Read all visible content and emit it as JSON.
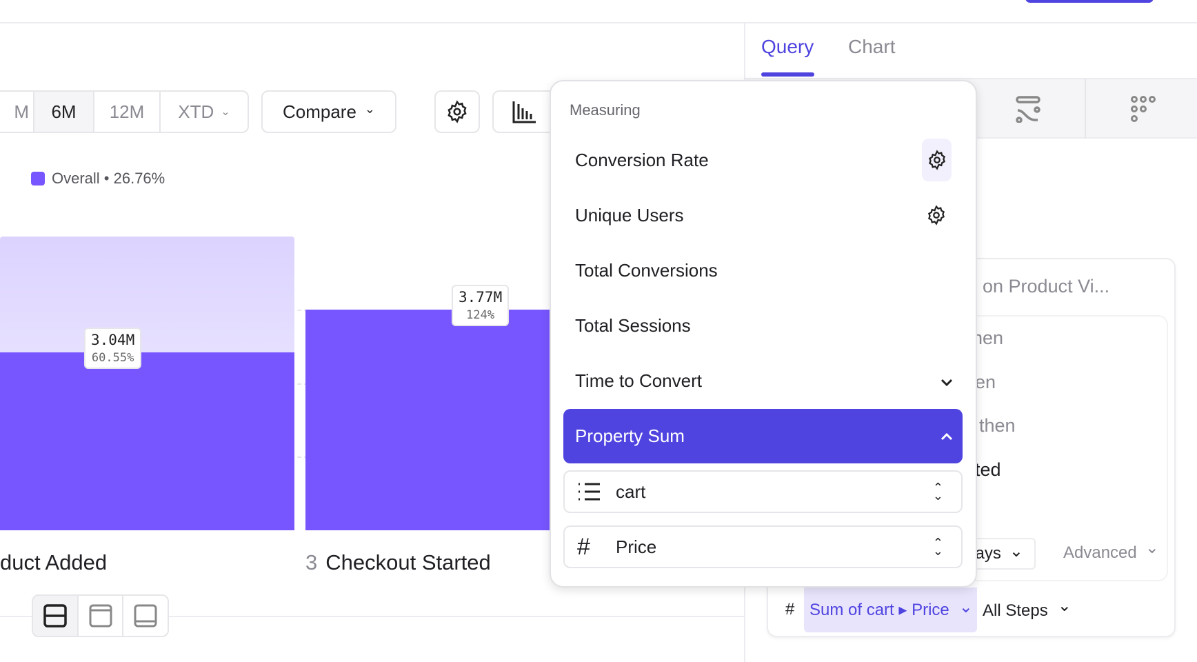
{
  "header": {
    "primary_button_color": "#4F44E0"
  },
  "toolbar": {
    "ranges": [
      {
        "label": "M",
        "active": false
      },
      {
        "label": "6M",
        "active": true
      },
      {
        "label": "12M",
        "active": false
      },
      {
        "label": "XTD",
        "active": false
      }
    ],
    "compare_label": "Compare",
    "settings_icon": "gear-icon",
    "chart_type_icon": "bar-chart-icon"
  },
  "legend": {
    "label": "Overall • 26.76%",
    "color": "#7856FF"
  },
  "chart_data": {
    "type": "bar",
    "categories": [
      "duct Added",
      "Checkout Started"
    ],
    "step_numbers": [
      "",
      "3"
    ],
    "values": [
      3.04,
      3.77
    ],
    "value_labels": [
      "3.04M",
      "3.77M"
    ],
    "pct_labels": [
      "60.55%",
      "124%"
    ],
    "previous_step_value": 5.02,
    "unit": "M",
    "ylim": [
      0,
      5.03
    ],
    "grid": true,
    "colors": {
      "bar": "#7856FF",
      "previous": "#DCD3FF"
    }
  },
  "view_toggle": {
    "icons": [
      "split-view-icon",
      "top-panel-icon",
      "bottom-panel-icon"
    ]
  },
  "right_panel": {
    "tabs": [
      {
        "label": "Query",
        "active": true
      },
      {
        "label": "Chart",
        "active": false
      }
    ],
    "icon_tabs": [
      "flows-icon",
      "grid-dots-icon"
    ],
    "card_title": "on Product Vi...",
    "steps": [
      "hen",
      "en",
      "then",
      "ted"
    ],
    "window_label": "lays",
    "advanced_label": "Advanced",
    "measure_hash": "#",
    "measure_label": "Sum of cart ▸ Price",
    "steps_label": "All Steps"
  },
  "dropdown": {
    "heading": "Measuring",
    "items": [
      {
        "label": "Conversion Rate",
        "icon": "gear-icon"
      },
      {
        "label": "Unique Users",
        "icon": "gear-icon"
      },
      {
        "label": "Total Conversions"
      },
      {
        "label": "Total Sessions"
      },
      {
        "label": "Time to Convert",
        "icon": "chevron-down-icon"
      },
      {
        "label": "Property Sum",
        "icon": "chevron-up-icon",
        "selected": true
      }
    ],
    "property_list": "cart",
    "property": "Price",
    "accent": "#4F44E0"
  }
}
